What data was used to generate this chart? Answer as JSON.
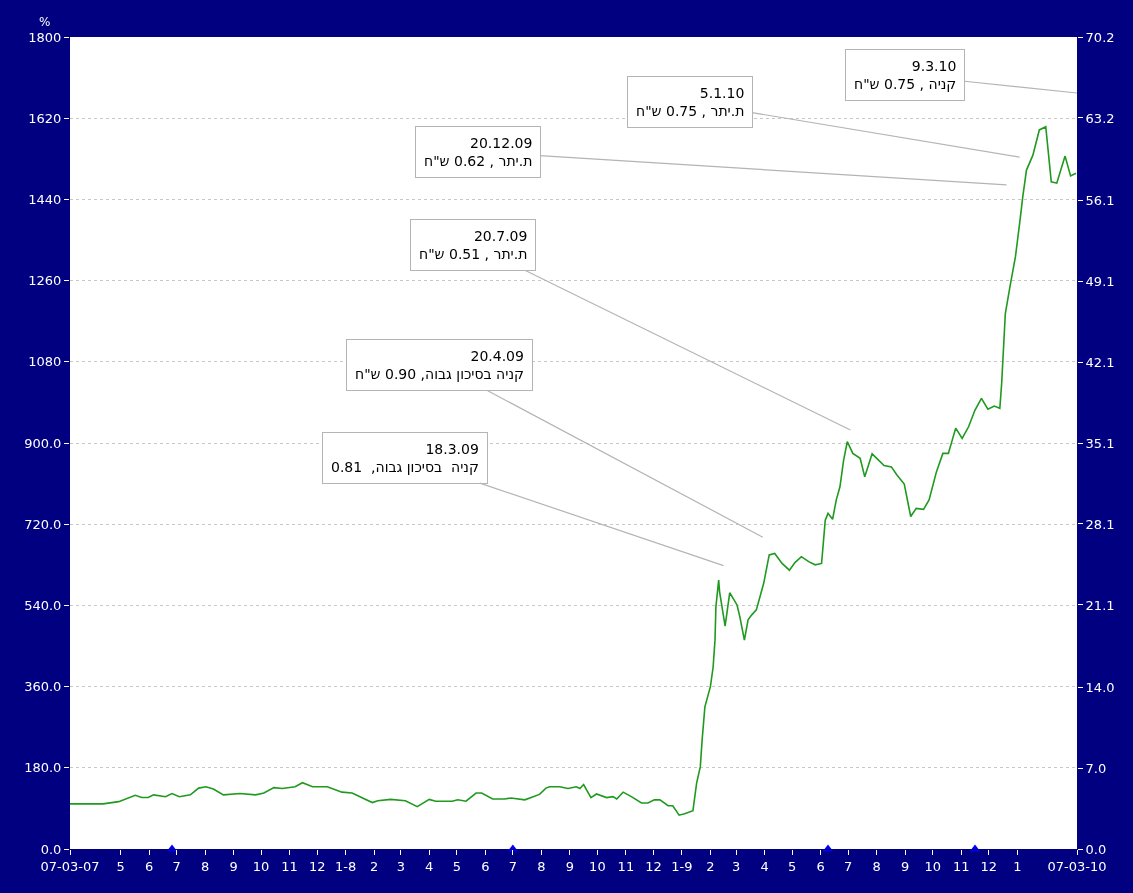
{
  "chart_data": {
    "type": "line",
    "ylabel": "%",
    "x": [
      "2007-03-07",
      "2007-04-12",
      "2007-04-29",
      "2007-05-17",
      "2007-05-24",
      "2007-05-31",
      "2007-06-06",
      "2007-06-19",
      "2007-06-26",
      "2007-07-04",
      "2007-07-16",
      "2007-07-25",
      "2007-08-02",
      "2007-08-10",
      "2007-08-21",
      "2007-09-08",
      "2007-09-25",
      "2007-10-04",
      "2007-10-15",
      "2007-10-24",
      "2007-11-07",
      "2007-11-15",
      "2007-11-26",
      "2007-12-12",
      "2007-12-28",
      "2008-01-08",
      "2008-01-30",
      "2008-02-05",
      "2008-02-19",
      "2008-03-06",
      "2008-03-19",
      "2008-04-01",
      "2008-04-08",
      "2008-04-26",
      "2008-05-02",
      "2008-05-11",
      "2008-05-22",
      "2008-05-28",
      "2008-06-09",
      "2008-06-22",
      "2008-06-29",
      "2008-07-14",
      "2008-07-30",
      "2008-08-06",
      "2008-08-10",
      "2008-08-21",
      "2008-08-30",
      "2008-09-08",
      "2008-09-12",
      "2008-09-16",
      "2008-09-24",
      "2008-09-30",
      "2008-10-11",
      "2008-10-18",
      "2008-10-22",
      "2008-10-29",
      "2008-11-07",
      "2008-11-18",
      "2008-11-25",
      "2008-12-02",
      "2008-12-08",
      "2008-12-17",
      "2008-12-22",
      "2008-12-29",
      "2009-01-04",
      "2009-01-13",
      "2009-01-17",
      "2009-01-21",
      "2009-01-23",
      "2009-01-26",
      "2009-02-01",
      "2009-02-04",
      "2009-02-06",
      "2009-02-07",
      "2009-02-10",
      "2009-02-11",
      "2009-02-17",
      "2009-02-22",
      "2009-03-02",
      "2009-03-05",
      "2009-03-10",
      "2009-03-14",
      "2009-03-18",
      "2009-03-23",
      "2009-03-31",
      "2009-04-06",
      "2009-04-12",
      "2009-04-20",
      "2009-04-28",
      "2009-05-04",
      "2009-05-11",
      "2009-05-19",
      "2009-05-26",
      "2009-06-02",
      "2009-06-06",
      "2009-06-09",
      "2009-06-14",
      "2009-06-18",
      "2009-06-22",
      "2009-06-26",
      "2009-06-30",
      "2009-07-06",
      "2009-07-14",
      "2009-07-19",
      "2009-07-27",
      "2009-08-09",
      "2009-08-17",
      "2009-08-23",
      "2009-08-31",
      "2009-09-07",
      "2009-09-13",
      "2009-09-21",
      "2009-09-27",
      "2009-10-05",
      "2009-10-12",
      "2009-10-18",
      "2009-10-26",
      "2009-11-02",
      "2009-11-09",
      "2009-11-16",
      "2009-11-23",
      "2009-11-30",
      "2009-12-07",
      "2009-12-13",
      "2009-12-15",
      "2009-12-19",
      "2009-12-24",
      "2009-12-30",
      "2010-01-04",
      "2010-01-07",
      "2010-01-11",
      "2010-01-18",
      "2010-01-25",
      "2010-02-01",
      "2010-02-07",
      "2010-02-13",
      "2010-02-22",
      "2010-02-28",
      "2010-03-06"
    ],
    "series": [
      {
        "color": "#1f9a1f",
        "values": [
          100,
          100,
          105,
          119,
          114,
          114,
          120,
          116,
          123,
          116,
          120,
          135,
          138,
          133,
          120,
          123,
          120,
          124,
          136,
          134,
          138,
          147,
          138,
          138,
          126,
          124,
          103,
          107,
          110,
          107,
          94,
          110,
          106,
          106,
          109,
          106,
          124,
          124,
          111,
          111,
          113,
          109,
          121,
          135,
          138,
          138,
          134,
          138,
          134,
          143,
          114,
          122,
          114,
          116,
          111,
          126,
          116,
          102,
          102,
          109,
          109,
          96,
          96,
          75,
          78,
          85,
          146,
          182,
          242,
          315,
          360,
          404,
          463,
          537,
          596,
          570,
          494,
          568,
          541,
          515,
          463,
          508,
          519,
          530,
          589,
          652,
          655,
          633,
          618,
          635,
          648,
          637,
          630,
          633,
          729,
          744,
          731,
          774,
          803,
          862,
          903,
          877,
          866,
          825,
          876,
          850,
          847,
          829,
          809,
          737,
          755,
          753,
          774,
          836,
          877,
          877,
          933,
          910,
          936,
          973,
          999,
          975,
          982,
          977,
          1032,
          1187,
          1246,
          1313,
          1394,
          1446,
          1505,
          1538,
          1594,
          1601,
          1479,
          1476,
          1536,
          1492,
          1498
        ]
      },
      {
        "type": "scatter",
        "marker": "triangle",
        "color": "#0000ff",
        "x": [
          "2007-06-26",
          "2008-07-01",
          "2009-06-09",
          "2009-11-16"
        ],
        "values": [
          0,
          0,
          0,
          0
        ]
      }
    ],
    "xlim": [
      "2007-03-07",
      "2010-03-07"
    ],
    "xticks": [
      {
        "value": "2007-03-07",
        "label": "07-03-07"
      },
      {
        "value": "2007-05-01",
        "label": "5"
      },
      {
        "value": "2007-06-01",
        "label": "6"
      },
      {
        "value": "2007-07-01",
        "label": "7"
      },
      {
        "value": "2007-08-01",
        "label": "8"
      },
      {
        "value": "2007-09-01",
        "label": "9"
      },
      {
        "value": "2007-10-01",
        "label": "10"
      },
      {
        "value": "2007-11-01",
        "label": "11"
      },
      {
        "value": "2007-12-01",
        "label": "12"
      },
      {
        "value": "2008-01-01",
        "label": "1-8"
      },
      {
        "value": "2008-02-01",
        "label": "2"
      },
      {
        "value": "2008-03-01",
        "label": "3"
      },
      {
        "value": "2008-04-01",
        "label": "4"
      },
      {
        "value": "2008-05-01",
        "label": "5"
      },
      {
        "value": "2008-06-01",
        "label": "6"
      },
      {
        "value": "2008-07-01",
        "label": "7"
      },
      {
        "value": "2008-08-01",
        "label": "8"
      },
      {
        "value": "2008-09-01",
        "label": "9"
      },
      {
        "value": "2008-10-01",
        "label": "10"
      },
      {
        "value": "2008-11-01",
        "label": "11"
      },
      {
        "value": "2008-12-01",
        "label": "12"
      },
      {
        "value": "2009-01-01",
        "label": "1-9"
      },
      {
        "value": "2009-02-01",
        "label": "2"
      },
      {
        "value": "2009-03-01",
        "label": "3"
      },
      {
        "value": "2009-04-01",
        "label": "4"
      },
      {
        "value": "2009-05-01",
        "label": "5"
      },
      {
        "value": "2009-06-01",
        "label": "6"
      },
      {
        "value": "2009-07-01",
        "label": "7"
      },
      {
        "value": "2009-08-01",
        "label": "8"
      },
      {
        "value": "2009-09-01",
        "label": "9"
      },
      {
        "value": "2009-10-01",
        "label": "10"
      },
      {
        "value": "2009-11-01",
        "label": "11"
      },
      {
        "value": "2009-12-01",
        "label": "12"
      },
      {
        "value": "2010-01-01",
        "label": "1"
      },
      {
        "value": "2010-03-07",
        "label": "07-03-10"
      }
    ],
    "ylim": [
      0,
      1800
    ],
    "yticks": [
      {
        "value": 0,
        "label": "0.0"
      },
      {
        "value": 180,
        "label": "180.0"
      },
      {
        "value": 360,
        "label": "360.0"
      },
      {
        "value": 540,
        "label": "540.0"
      },
      {
        "value": 720,
        "label": "720.0"
      },
      {
        "value": 900,
        "label": "900.0"
      },
      1080,
      1260,
      1440,
      1620,
      1800
    ],
    "y2lim": [
      0,
      70.2
    ],
    "y2ticks": [
      {
        "value": 0,
        "label": "0.0"
      },
      {
        "value": 7,
        "label": "7.0"
      },
      {
        "value": 14,
        "label": "14.0"
      },
      21.1,
      28.1,
      35.1,
      42.1,
      49.1,
      56.1,
      63.2,
      70.2
    ],
    "grid": "y",
    "line_style": "solid",
    "annotations": [
      "9.3.10\nקניה , 0.75 ש\"ח",
      "5.1.10\nת.יתר , 0.75 ש\"ח",
      "20.12.09\nת.יתר , 0.62 ש\"ח",
      "20.7.09\nת.יתר , 0.51 ש\"ח",
      "20.4.09\nקניה בסיכון גבוה, 0.90 ש\"ח",
      "18.3.09\nקניה  בסיכון גבוה,  0.81"
    ]
  }
}
